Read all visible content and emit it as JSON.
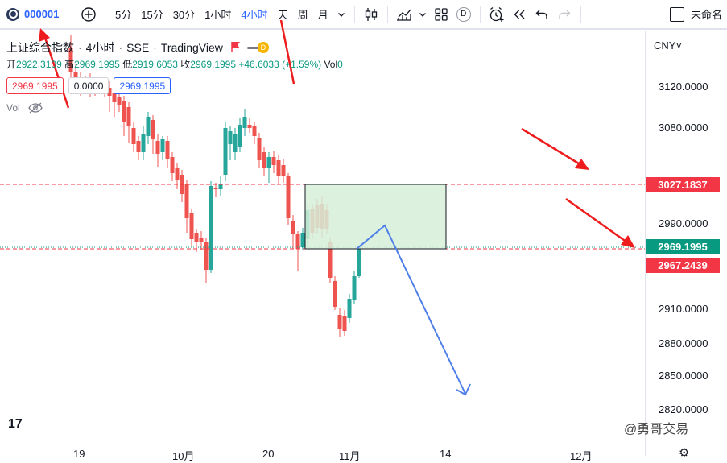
{
  "toolbar": {
    "symbol": "000001",
    "intervals": [
      "5分",
      "15分",
      "30分",
      "1小时",
      "4小时",
      "天",
      "周",
      "月"
    ],
    "active_interval": "4小时",
    "d_badge": "D",
    "save_label": "未命名"
  },
  "legend": {
    "name": "上证综合指数",
    "interval": "4小时",
    "exchange": "SSE",
    "source": "TradingView",
    "flag_letter": "D"
  },
  "ohlc": {
    "open_label": "开",
    "open": "2922.3109",
    "high_label": "高",
    "high": "2969.1995",
    "low_label": "低",
    "low": "2919.6053",
    "close_label": "收",
    "close": "2969.1995",
    "change": "+46.6033 (+1.59%)",
    "vol_label": "Vol",
    "vol": "0"
  },
  "boxes": {
    "sell": "2969.1995",
    "spread": "0.0000",
    "buy": "2969.1995"
  },
  "vol_indicator": "Vol",
  "axis": {
    "currency": "CNY",
    "ticks": [
      "3120.0000",
      "3080.0000",
      "2990.0000",
      "2910.0000",
      "2880.0000",
      "2850.0000",
      "2820.0000"
    ]
  },
  "price_tags": {
    "line_a": {
      "value": "3027.1837",
      "color": "#f23645"
    },
    "current": {
      "value": "2969.1995",
      "color": "#089981"
    },
    "line_b": {
      "value": "2967.2439",
      "color": "#f23645"
    }
  },
  "time_axis": [
    "19",
    "10月",
    "20",
    "11月",
    "14",
    "12月"
  ],
  "tv_logo": "17",
  "watermark": "@勇哥交易",
  "colors": {
    "up": "#26a69a",
    "down": "#ef5350",
    "projection": "#4f7fe8",
    "arrow": "#ee1c1c",
    "zone_fill": "#d6eed8"
  }
}
